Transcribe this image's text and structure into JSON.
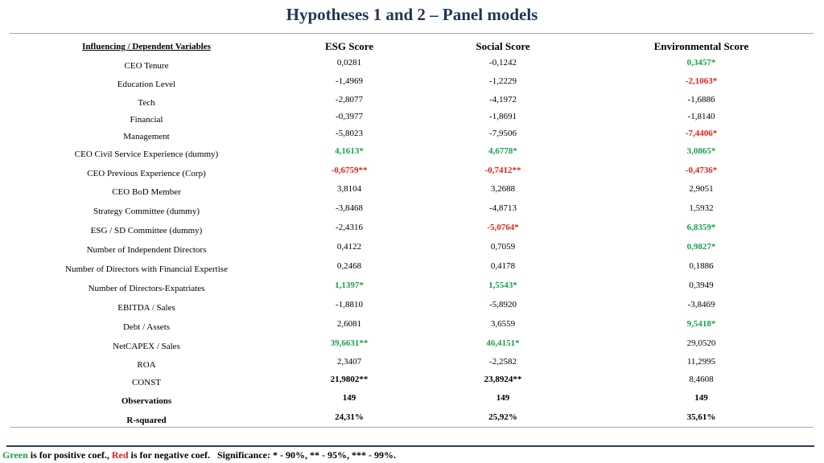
{
  "title": "Hypotheses 1 and 2 – Panel models",
  "headers": {
    "variables": "Influencing / Dependent Variables",
    "esg": "ESG Score",
    "social": "Social Score",
    "environmental": "Environmental Score"
  },
  "rows": [
    {
      "label": "CEO Tenure",
      "esg": "0,0281",
      "social": "-0,1242",
      "env": "0,3457*",
      "esg_style": "",
      "social_style": "",
      "env_style": "pos"
    },
    {
      "label": "Education Level",
      "esg": "-1,4969",
      "social": "-1,2229",
      "env": "-2,1063*",
      "esg_style": "",
      "social_style": "",
      "env_style": "neg"
    },
    {
      "label": "Tech",
      "esg": "-2,8077",
      "social": "-4,1972",
      "env": "-1,6886",
      "esg_style": "",
      "social_style": "",
      "env_style": ""
    },
    {
      "label": "Financial",
      "esg": "-0,3977",
      "social": "-1,8691",
      "env": "-1,8140",
      "esg_style": "",
      "social_style": "",
      "env_style": ""
    },
    {
      "label": "Management",
      "esg": "-5,8023",
      "social": "-7,9506",
      "env": "-7,4406*",
      "esg_style": "",
      "social_style": "",
      "env_style": "neg"
    },
    {
      "label": "CEO Civil Service Experience (dummy)",
      "esg": "4,1613*",
      "social": "4,6778*",
      "env": "3,0865*",
      "esg_style": "pos",
      "social_style": "pos",
      "env_style": "pos"
    },
    {
      "label": "CEO Previous Experience (Corp)",
      "esg": "-0,6759**",
      "social": "-0,7412**",
      "env": "-0,4736*",
      "esg_style": "neg",
      "social_style": "neg",
      "env_style": "neg"
    },
    {
      "label": "CEO BoD Member",
      "esg": "3,8104",
      "social": "3,2688",
      "env": "2,9051",
      "esg_style": "",
      "social_style": "",
      "env_style": ""
    },
    {
      "label": "Strategy Committee (dummy)",
      "esg": "-3,8468",
      "social": "-4,8713",
      "env": "1,5932",
      "esg_style": "",
      "social_style": "",
      "env_style": ""
    },
    {
      "label": "ESG / SD Committee (dummy)",
      "esg": "-2,4316",
      "social": "-5,0764*",
      "env": "6,8359*",
      "esg_style": "",
      "social_style": "neg",
      "env_style": "pos"
    },
    {
      "label": "Number of Independent Directors",
      "esg": "0,4122",
      "social": "0,7059",
      "env": "0,9827*",
      "esg_style": "",
      "social_style": "",
      "env_style": "pos"
    },
    {
      "label": "Number of Directors with Financial Expertise",
      "esg": "0,2468",
      "social": "0,4178",
      "env": "0,1886",
      "esg_style": "",
      "social_style": "",
      "env_style": ""
    },
    {
      "label": "Number of Directors-Expatriates",
      "esg": "1,1397*",
      "social": "1,5543*",
      "env": "0,3949",
      "esg_style": "pos",
      "social_style": "pos",
      "env_style": ""
    },
    {
      "label": "EBITDA / Sales",
      "esg": "-1,8810",
      "social": "-5,8920",
      "env": "-3,8469",
      "esg_style": "",
      "social_style": "",
      "env_style": ""
    },
    {
      "label": "Debt / Assets",
      "esg": "2,6081",
      "social": "3,6559",
      "env": "9,5418*",
      "esg_style": "",
      "social_style": "",
      "env_style": "pos"
    },
    {
      "label": "NetCAPEX / Sales",
      "esg": "39,6631**",
      "social": "46,4151*",
      "env": "29,0520",
      "esg_style": "pos",
      "social_style": "pos",
      "env_style": ""
    },
    {
      "label": "ROA",
      "esg": "2,3407",
      "social": "-2,2582",
      "env": "11,2995",
      "esg_style": "",
      "social_style": "",
      "env_style": ""
    },
    {
      "label": "CONST",
      "esg": "21,9802**",
      "social": "23,8924**",
      "env": "8,4608",
      "esg_style": "bold",
      "social_style": "bold",
      "env_style": ""
    },
    {
      "label": "Observations",
      "esg": "149",
      "social": "149",
      "env": "149",
      "esg_style": "bold",
      "social_style": "bold",
      "env_style": "bold",
      "label_style": "bold"
    },
    {
      "label": "R-squared",
      "esg": "24,31%",
      "social": "25,92%",
      "env": "35,61%",
      "esg_style": "bold",
      "social_style": "bold",
      "env_style": "bold",
      "label_style": "bold"
    }
  ],
  "footer": {
    "green_word": "Green",
    "green_text": " is for positive coef., ",
    "red_word": "Red",
    "red_text": " is for negative coef.",
    "significance": "Significance: * - 90%, ** - 95%, *** - 99%."
  }
}
